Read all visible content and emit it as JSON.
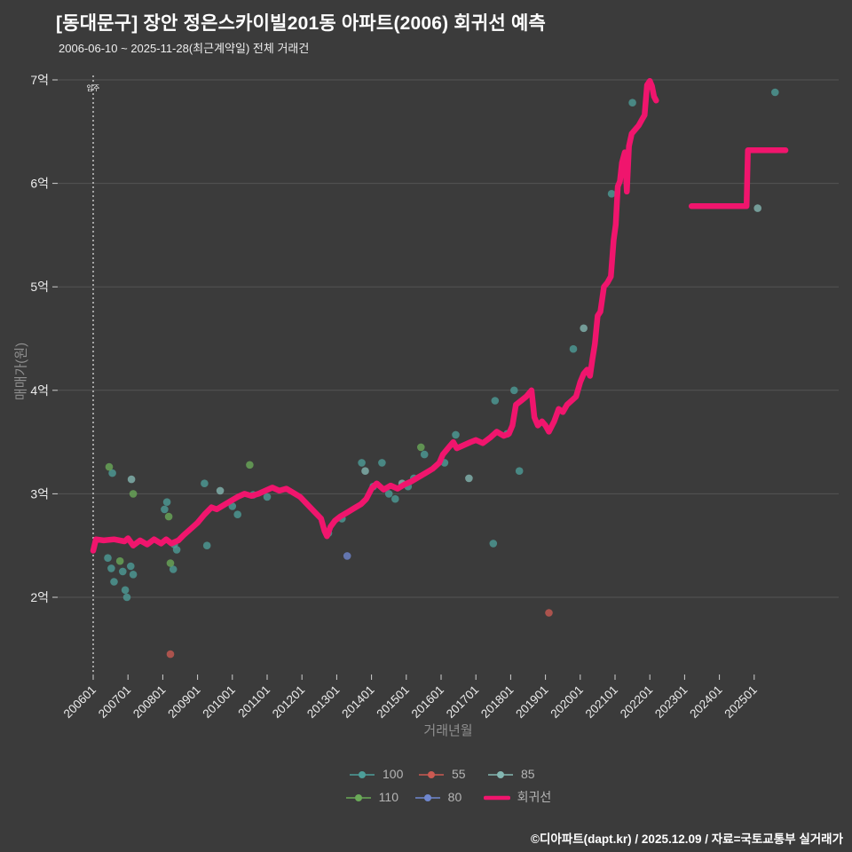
{
  "page": {
    "title": "[동대문구] 장안 정은스카이빌201동 아파트(2006) 회귀선 예측",
    "subtitle": "2006-06-10 ~ 2025-11-28(최근계약일) 전체 거래건",
    "footer": "©디아파트(dapt.kr) / 2025.12.09 / 자료=국토교통부 실거래가",
    "background_color": "#3b3b3b"
  },
  "chart_data": {
    "type": "line+scatter",
    "title": "[동대문구] 장안 정은스카이빌201동 아파트(2006) 회귀선 예측",
    "subtitle": "2006-06-10 ~ 2025-11-28(최근계약일) 전체 거래건",
    "xlabel": "거래년월",
    "ylabel": "매매가(원)",
    "y_unit": "억",
    "grid": true,
    "legend_position": "bottom-center",
    "x_ticks": [
      "200601",
      "200701",
      "200801",
      "200901",
      "201001",
      "201101",
      "201201",
      "201301",
      "201401",
      "201501",
      "201601",
      "201701",
      "201801",
      "201901",
      "202001",
      "202101",
      "202201",
      "202301",
      "202401",
      "202501"
    ],
    "y_ticks": [
      {
        "label": "7억",
        "value": 7
      },
      {
        "label": "6억",
        "value": 6
      },
      {
        "label": "5억",
        "value": 5
      },
      {
        "label": "4억",
        "value": 4
      },
      {
        "label": "3억",
        "value": 3
      },
      {
        "label": "2억",
        "value": 2
      }
    ],
    "annotation": {
      "label": "입주",
      "x_year": 2006.0
    },
    "legend": [
      {
        "label": "100",
        "color": "#4d9e99",
        "type": "scatter"
      },
      {
        "label": "55",
        "color": "#cb5a52",
        "type": "scatter"
      },
      {
        "label": "85",
        "color": "#84b7b2",
        "type": "scatter"
      },
      {
        "label": "110",
        "color": "#6aaa58",
        "type": "scatter"
      },
      {
        "label": "80",
        "color": "#6f87cf",
        "type": "scatter"
      },
      {
        "label": "회귀선",
        "color": "#f0156d",
        "type": "line"
      }
    ],
    "regression_line": {
      "name": "회귀선",
      "color": "#f0156d",
      "segments": [
        [
          [
            2006.0,
            2.45
          ],
          [
            2006.08,
            2.56
          ],
          [
            2006.3,
            2.55
          ],
          [
            2006.6,
            2.56
          ],
          [
            2006.9,
            2.54
          ],
          [
            2007.0,
            2.57
          ],
          [
            2007.15,
            2.5
          ],
          [
            2007.35,
            2.55
          ],
          [
            2007.55,
            2.51
          ],
          [
            2007.75,
            2.56
          ],
          [
            2007.95,
            2.52
          ],
          [
            2008.1,
            2.56
          ],
          [
            2008.25,
            2.52
          ],
          [
            2008.45,
            2.55
          ],
          [
            2008.6,
            2.6
          ],
          [
            2008.8,
            2.66
          ],
          [
            2009.0,
            2.72
          ],
          [
            2009.2,
            2.8
          ],
          [
            2009.4,
            2.87
          ],
          [
            2009.55,
            2.85
          ],
          [
            2009.75,
            2.89
          ],
          [
            2009.95,
            2.93
          ],
          [
            2010.15,
            2.97
          ],
          [
            2010.35,
            3.0
          ],
          [
            2010.55,
            2.98
          ],
          [
            2010.75,
            3.0
          ],
          [
            2010.95,
            3.03
          ],
          [
            2011.15,
            3.06
          ],
          [
            2011.35,
            3.03
          ],
          [
            2011.55,
            3.05
          ],
          [
            2011.75,
            3.01
          ],
          [
            2011.95,
            2.97
          ],
          [
            2012.15,
            2.9
          ],
          [
            2012.35,
            2.83
          ],
          [
            2012.55,
            2.76
          ],
          [
            2012.65,
            2.64
          ],
          [
            2012.72,
            2.59
          ],
          [
            2012.82,
            2.68
          ],
          [
            2012.95,
            2.74
          ],
          [
            2013.1,
            2.78
          ],
          [
            2013.3,
            2.82
          ],
          [
            2013.5,
            2.86
          ],
          [
            2013.7,
            2.9
          ],
          [
            2013.85,
            2.95
          ],
          [
            2014.0,
            3.05
          ],
          [
            2014.15,
            3.1
          ],
          [
            2014.35,
            3.04
          ],
          [
            2014.55,
            3.08
          ],
          [
            2014.75,
            3.05
          ],
          [
            2014.95,
            3.09
          ],
          [
            2015.15,
            3.12
          ],
          [
            2015.35,
            3.16
          ],
          [
            2015.55,
            3.2
          ],
          [
            2015.75,
            3.24
          ],
          [
            2015.95,
            3.3
          ],
          [
            2016.05,
            3.38
          ],
          [
            2016.2,
            3.44
          ],
          [
            2016.35,
            3.5
          ],
          [
            2016.45,
            3.44
          ],
          [
            2016.65,
            3.47
          ],
          [
            2016.85,
            3.5
          ],
          [
            2017.0,
            3.52
          ],
          [
            2017.2,
            3.49
          ],
          [
            2017.4,
            3.54
          ],
          [
            2017.6,
            3.6
          ],
          [
            2017.8,
            3.56
          ],
          [
            2017.95,
            3.58
          ],
          [
            2018.05,
            3.66
          ],
          [
            2018.15,
            3.86
          ],
          [
            2018.3,
            3.9
          ],
          [
            2018.45,
            3.94
          ],
          [
            2018.6,
            4.0
          ],
          [
            2018.68,
            3.74
          ],
          [
            2018.78,
            3.66
          ],
          [
            2018.9,
            3.7
          ],
          [
            2019.0,
            3.66
          ],
          [
            2019.1,
            3.6
          ],
          [
            2019.25,
            3.7
          ],
          [
            2019.38,
            3.82
          ],
          [
            2019.5,
            3.79
          ],
          [
            2019.62,
            3.86
          ],
          [
            2019.75,
            3.9
          ],
          [
            2019.88,
            3.94
          ],
          [
            2020.0,
            4.08
          ],
          [
            2020.1,
            4.16
          ],
          [
            2020.2,
            4.2
          ],
          [
            2020.28,
            4.14
          ],
          [
            2020.35,
            4.3
          ],
          [
            2020.42,
            4.45
          ],
          [
            2020.5,
            4.72
          ],
          [
            2020.58,
            4.76
          ],
          [
            2020.68,
            5.0
          ],
          [
            2020.78,
            5.04
          ],
          [
            2020.88,
            5.1
          ],
          [
            2020.96,
            5.45
          ],
          [
            2021.02,
            5.6
          ],
          [
            2021.08,
            5.97
          ],
          [
            2021.14,
            6.02
          ],
          [
            2021.2,
            6.2
          ],
          [
            2021.28,
            6.3
          ],
          [
            2021.34,
            5.92
          ],
          [
            2021.4,
            6.36
          ],
          [
            2021.48,
            6.48
          ],
          [
            2021.58,
            6.52
          ],
          [
            2021.68,
            6.56
          ],
          [
            2021.78,
            6.62
          ],
          [
            2021.85,
            6.66
          ],
          [
            2021.92,
            6.95
          ],
          [
            2022.0,
            6.99
          ],
          [
            2022.06,
            6.94
          ],
          [
            2022.12,
            6.84
          ],
          [
            2022.18,
            6.8
          ]
        ],
        [
          [
            2023.2,
            5.78
          ],
          [
            2024.78,
            5.78
          ],
          [
            2024.82,
            6.32
          ],
          [
            2025.9,
            6.32
          ]
        ]
      ]
    },
    "scatter_series": [
      {
        "name": "100",
        "color": "#4d9e99",
        "points": [
          [
            2006.55,
            3.2
          ],
          [
            2006.42,
            2.38
          ],
          [
            2006.52,
            2.28
          ],
          [
            2006.6,
            2.15
          ],
          [
            2006.85,
            2.25
          ],
          [
            2006.92,
            2.07
          ],
          [
            2006.97,
            2.0
          ],
          [
            2007.08,
            2.3
          ],
          [
            2007.15,
            2.22
          ],
          [
            2008.05,
            2.85
          ],
          [
            2008.12,
            2.92
          ],
          [
            2008.3,
            2.27
          ],
          [
            2008.33,
            2.51
          ],
          [
            2008.4,
            2.46
          ],
          [
            2009.2,
            3.1
          ],
          [
            2009.27,
            2.5
          ],
          [
            2010.0,
            2.88
          ],
          [
            2010.15,
            2.8
          ],
          [
            2010.6,
            2.99
          ],
          [
            2011.0,
            2.97
          ],
          [
            2012.76,
            2.62
          ],
          [
            2013.15,
            2.76
          ],
          [
            2013.72,
            3.3
          ],
          [
            2014.05,
            3.07
          ],
          [
            2014.3,
            3.3
          ],
          [
            2014.5,
            3.0
          ],
          [
            2014.68,
            2.95
          ],
          [
            2015.05,
            3.07
          ],
          [
            2015.22,
            3.15
          ],
          [
            2015.52,
            3.38
          ],
          [
            2016.1,
            3.3
          ],
          [
            2016.42,
            3.57
          ],
          [
            2017.5,
            2.52
          ],
          [
            2017.55,
            3.9
          ],
          [
            2017.9,
            3.58
          ],
          [
            2018.1,
            4.0
          ],
          [
            2018.25,
            3.22
          ],
          [
            2019.8,
            4.4
          ],
          [
            2020.9,
            5.9
          ],
          [
            2021.5,
            6.78
          ],
          [
            2025.6,
            6.88
          ]
        ]
      },
      {
        "name": "85",
        "color": "#84b7b2",
        "points": [
          [
            2007.1,
            3.14
          ],
          [
            2009.65,
            3.03
          ],
          [
            2013.82,
            3.22
          ],
          [
            2014.88,
            3.1
          ],
          [
            2016.8,
            3.15
          ],
          [
            2020.1,
            4.6
          ],
          [
            2025.1,
            5.76
          ]
        ]
      },
      {
        "name": "110",
        "color": "#6aaa58",
        "points": [
          [
            2006.46,
            3.26
          ],
          [
            2006.77,
            2.35
          ],
          [
            2007.15,
            3.0
          ],
          [
            2008.17,
            2.78
          ],
          [
            2008.22,
            2.33
          ],
          [
            2010.5,
            3.28
          ],
          [
            2015.42,
            3.45
          ]
        ]
      },
      {
        "name": "55",
        "color": "#cb5a52",
        "points": [
          [
            2008.22,
            1.45
          ],
          [
            2019.1,
            1.85
          ]
        ]
      },
      {
        "name": "80",
        "color": "#6f87cf",
        "points": [
          [
            2013.3,
            2.4
          ]
        ]
      }
    ]
  }
}
